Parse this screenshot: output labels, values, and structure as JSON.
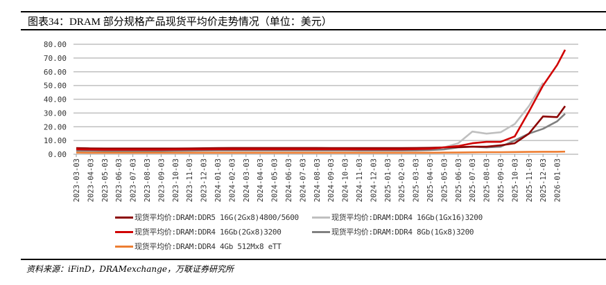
{
  "title": "图表34：DRAM 部分规格产品现货平均价走势情况（单位：美元）",
  "source": "资料来源：iFinD，DRAMexchange，万联证券研究所",
  "chart_data": {
    "type": "line",
    "ylim": [
      0,
      80
    ],
    "yticks": [
      "0.00",
      "10.00",
      "20.00",
      "30.00",
      "40.00",
      "50.00",
      "60.00",
      "70.00",
      "80.00"
    ],
    "grid": true,
    "legend_placement": "bottom",
    "xticks": [
      "2023-03-03",
      "2023-04-03",
      "2023-05-03",
      "2023-06-03",
      "2023-07-03",
      "2023-08-03",
      "2023-09-03",
      "2023-10-03",
      "2023-11-03",
      "2023-12-03",
      "2024-01-03",
      "2024-02-03",
      "2024-03-03",
      "2024-04-03",
      "2024-05-03",
      "2024-06-03",
      "2024-07-03",
      "2024-08-03",
      "2024-09-03",
      "2024-10-03",
      "2024-11-03",
      "2024-12-03",
      "2025-01-03",
      "2025-02-03",
      "2025-03-03",
      "2025-04-03",
      "2025-05-03",
      "2025-06-03",
      "2025-07-03",
      "2025-08-03",
      "2025-09-03",
      "2025-10-03",
      "2025-11-03",
      "2025-12-03",
      "2026-01-03"
    ],
    "x": [
      "2023-03-03",
      "2023-04-03",
      "2023-05-03",
      "2023-06-03",
      "2023-07-03",
      "2023-08-03",
      "2023-09-03",
      "2023-10-03",
      "2023-11-03",
      "2023-12-03",
      "2024-01-03",
      "2024-02-03",
      "2024-03-03",
      "2024-04-03",
      "2024-05-03",
      "2024-06-03",
      "2024-07-03",
      "2024-08-03",
      "2024-09-03",
      "2024-10-03",
      "2024-11-03",
      "2024-12-03",
      "2025-01-03",
      "2025-02-03",
      "2025-03-03",
      "2025-04-03",
      "2025-05-03",
      "2025-06-03",
      "2025-07-03",
      "2025-08-03",
      "2025-09-03",
      "2025-10-03",
      "2025-11-03",
      "2025-12-03",
      "2026-01-03",
      "2026-01-20"
    ],
    "series": [
      {
        "name": "现货平均价:DRAM:DDR5 16G(2Gx8)4800/5600",
        "color": "#8b0000",
        "values": [
          4.5,
          4.3,
          4.2,
          4.2,
          4.2,
          4.2,
          4.2,
          4.2,
          4.3,
          4.4,
          4.5,
          4.6,
          4.6,
          4.6,
          4.6,
          4.6,
          4.6,
          4.6,
          4.5,
          4.5,
          4.5,
          4.5,
          4.5,
          4.5,
          4.6,
          4.7,
          5.0,
          5.2,
          5.5,
          5.5,
          6.5,
          8,
          15,
          27.5,
          27,
          35
        ]
      },
      {
        "name": "现货平均价:DRAM:DDR4 16Gb(1Gx16)3200",
        "color": "#bfbfbf",
        "values": [
          4.0,
          3.8,
          3.7,
          3.6,
          3.6,
          3.6,
          3.6,
          3.7,
          3.8,
          3.9,
          4.0,
          4.0,
          4.0,
          4.0,
          4.0,
          4.0,
          4.0,
          4.0,
          4.0,
          4.0,
          4.0,
          4.0,
          4.0,
          4.0,
          4.1,
          4.3,
          5.0,
          8,
          16.5,
          15,
          16,
          22,
          35,
          52,
          null,
          null
        ]
      },
      {
        "name": "现货平均价:DRAM:DDR4 16Gb(2Gx8)3200",
        "color": "#d00000",
        "values": [
          3.6,
          3.4,
          3.3,
          3.3,
          3.3,
          3.3,
          3.3,
          3.4,
          3.5,
          3.5,
          3.6,
          3.6,
          3.6,
          3.6,
          3.6,
          3.6,
          3.6,
          3.6,
          3.6,
          3.6,
          3.5,
          3.5,
          3.5,
          3.5,
          3.7,
          4.0,
          5.0,
          6,
          8,
          9,
          9,
          13,
          31,
          50,
          65,
          76
        ]
      },
      {
        "name": "现货平均价:DRAM:DDR4 8Gb(1Gx8)3200",
        "color": "#808080",
        "values": [
          2.6,
          2.5,
          2.4,
          2.4,
          2.4,
          2.4,
          2.4,
          2.5,
          2.6,
          2.7,
          2.8,
          2.8,
          2.8,
          2.8,
          2.8,
          2.8,
          2.8,
          2.8,
          2.8,
          2.8,
          2.7,
          2.7,
          2.7,
          2.7,
          2.8,
          3.0,
          3.5,
          5,
          5.5,
          5,
          5.5,
          10,
          15,
          18.5,
          24,
          29.5
        ]
      },
      {
        "name": "现货平均价:DRAM:DDR4 4Gb 512Mx8 eTT",
        "color": "#ed7d31",
        "values": [
          1.2,
          1.1,
          1.1,
          1.1,
          1.1,
          1.1,
          1.1,
          1.1,
          1.1,
          1.1,
          1.1,
          1.1,
          1.1,
          1.1,
          1.1,
          1.1,
          1.1,
          1.1,
          1.1,
          1.1,
          1.1,
          1.1,
          1.1,
          1.1,
          1.1,
          1.1,
          1.2,
          1.3,
          1.4,
          1.5,
          1.5,
          1.6,
          1.7,
          1.8,
          1.8,
          1.9
        ]
      }
    ]
  }
}
